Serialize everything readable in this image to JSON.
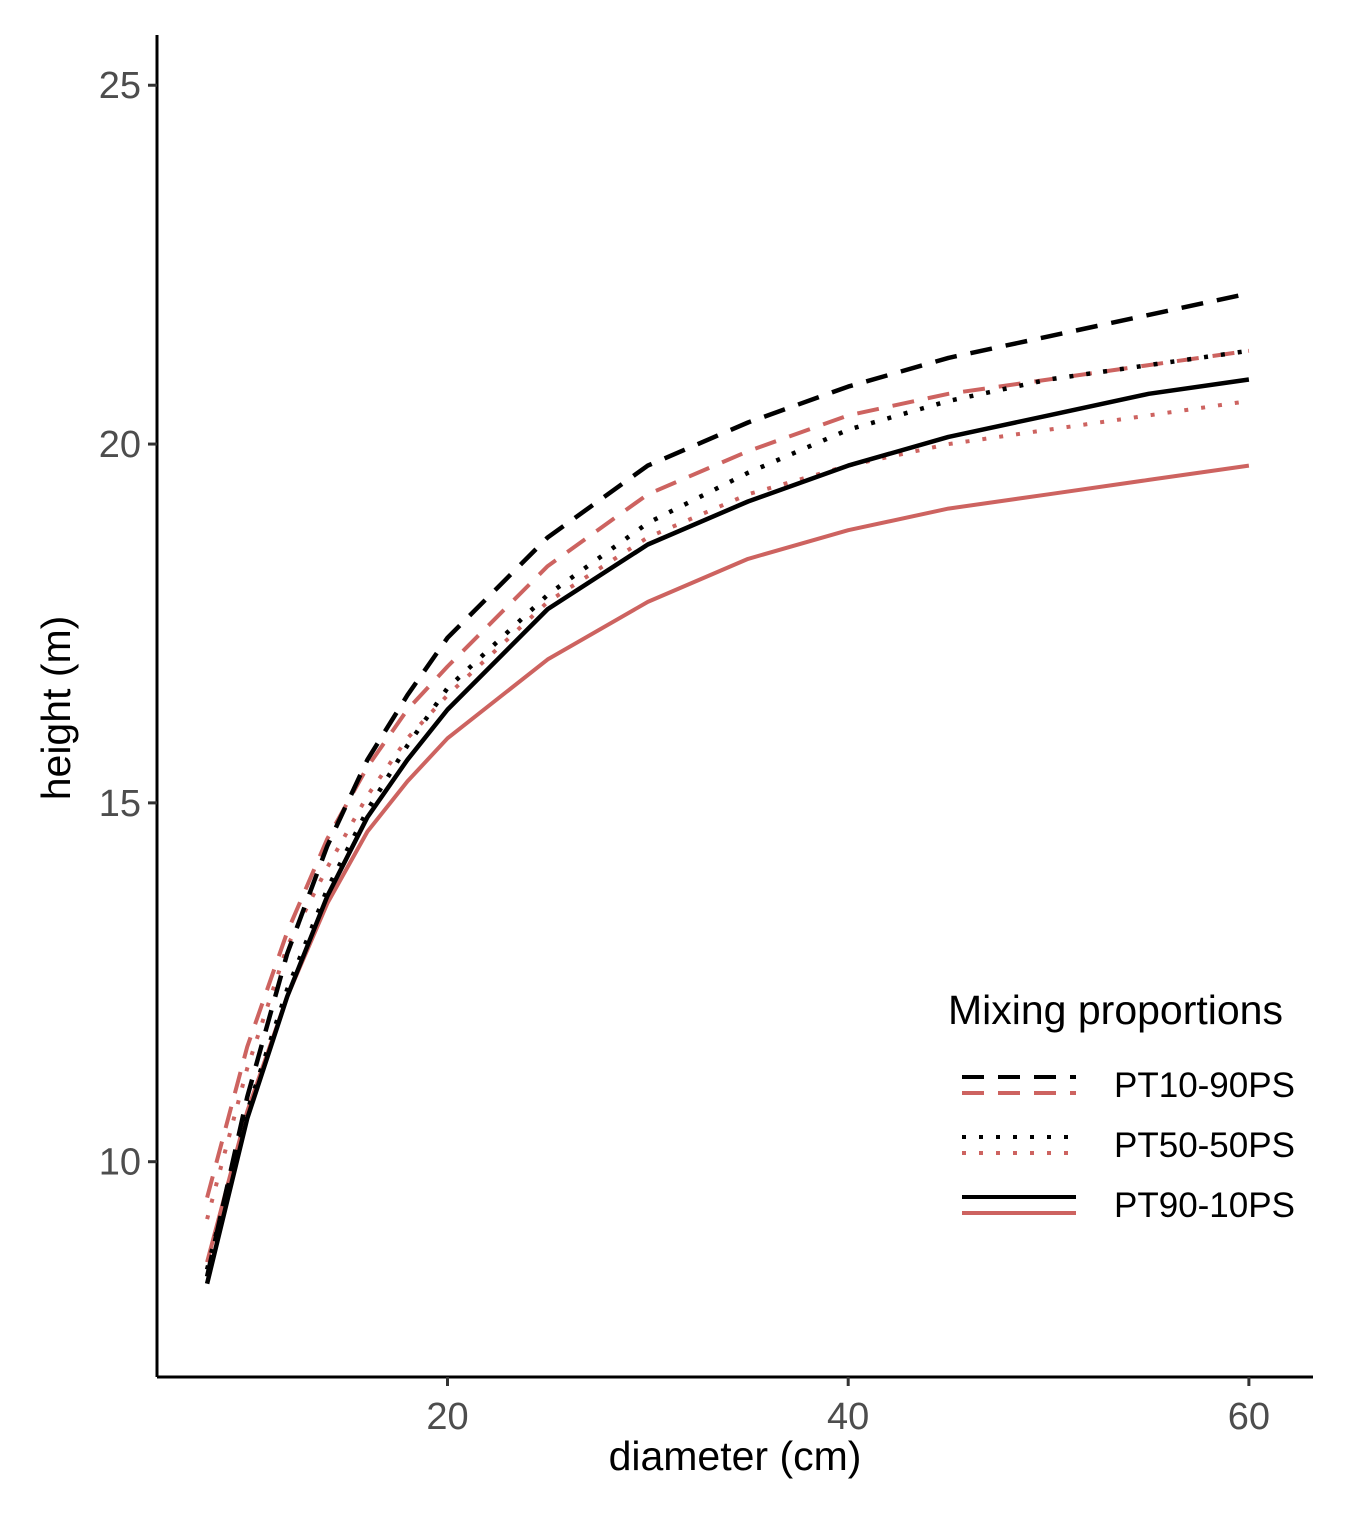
{
  "chart_data": {
    "type": "line",
    "title": "",
    "xlabel": "diameter (cm)",
    "ylabel": "height (m)",
    "xlim": [
      5.5,
      63.2
    ],
    "ylim": [
      7.0,
      25.7
    ],
    "xticks": [
      20,
      40,
      60
    ],
    "yticks": [
      10,
      15,
      20,
      25
    ],
    "grid": false,
    "legend": {
      "title": "Mixing proportions",
      "position": "bottom-right",
      "entries": [
        "PT10-90PS",
        "PT50-50PS",
        "PT90-10PS"
      ]
    },
    "colors": {
      "black": "#000000",
      "red": "#cd6360"
    },
    "series": [
      {
        "name": "PT10-90PS",
        "color": "black",
        "dash": "dashed",
        "x": [
          8,
          10,
          12,
          14,
          16,
          18,
          20,
          25,
          30,
          35,
          40,
          45,
          50,
          55,
          60
        ],
        "y": [
          8.4,
          10.9,
          12.9,
          14.4,
          15.6,
          16.5,
          17.3,
          18.7,
          19.7,
          20.3,
          20.8,
          21.2,
          21.5,
          21.8,
          22.1
        ]
      },
      {
        "name": "PT10-90PS",
        "color": "red",
        "dash": "dashed",
        "x": [
          8,
          10,
          12,
          14,
          16,
          18,
          20,
          25,
          30,
          35,
          40,
          45,
          50,
          55,
          60
        ],
        "y": [
          9.5,
          11.6,
          13.2,
          14.5,
          15.5,
          16.3,
          16.9,
          18.3,
          19.3,
          19.9,
          20.4,
          20.7,
          20.9,
          21.1,
          21.3
        ]
      },
      {
        "name": "PT50-50PS",
        "color": "black",
        "dash": "dotted",
        "x": [
          8,
          10,
          12,
          14,
          16,
          18,
          20,
          25,
          30,
          35,
          40,
          45,
          50,
          55,
          60
        ],
        "y": [
          8.5,
          10.7,
          12.4,
          13.8,
          14.9,
          15.8,
          16.6,
          17.9,
          18.9,
          19.6,
          20.2,
          20.6,
          20.9,
          21.1,
          21.3
        ]
      },
      {
        "name": "PT50-50PS",
        "color": "red",
        "dash": "dotted",
        "x": [
          8,
          10,
          12,
          14,
          16,
          18,
          20,
          25,
          30,
          35,
          40,
          45,
          50,
          55,
          60
        ],
        "y": [
          9.2,
          11.3,
          13.0,
          14.1,
          15.1,
          15.9,
          16.5,
          17.8,
          18.7,
          19.3,
          19.7,
          20.0,
          20.2,
          20.4,
          20.6
        ]
      },
      {
        "name": "PT90-10PS",
        "color": "black",
        "dash": "solid",
        "x": [
          8,
          10,
          12,
          14,
          16,
          18,
          20,
          25,
          30,
          35,
          40,
          45,
          50,
          55,
          60
        ],
        "y": [
          8.3,
          10.6,
          12.3,
          13.7,
          14.8,
          15.6,
          16.3,
          17.7,
          18.6,
          19.2,
          19.7,
          20.1,
          20.4,
          20.7,
          20.9
        ]
      },
      {
        "name": "PT90-10PS",
        "color": "red",
        "dash": "solid",
        "x": [
          8,
          10,
          12,
          14,
          16,
          18,
          20,
          25,
          30,
          35,
          40,
          45,
          50,
          55,
          60
        ],
        "y": [
          8.6,
          10.7,
          12.3,
          13.6,
          14.6,
          15.3,
          15.9,
          17.0,
          17.8,
          18.4,
          18.8,
          19.1,
          19.3,
          19.5,
          19.7
        ]
      }
    ]
  }
}
